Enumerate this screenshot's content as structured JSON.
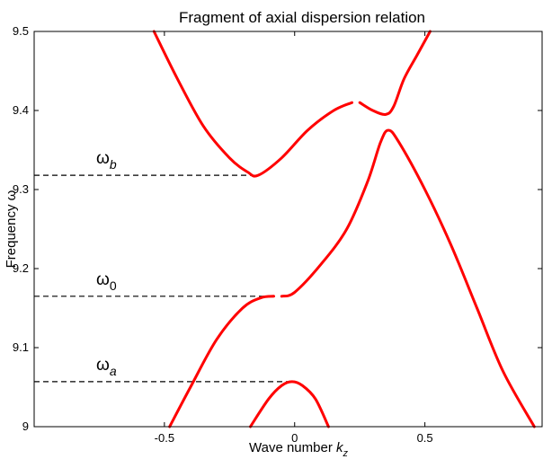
{
  "chart_data": {
    "type": "line",
    "title": "Fragment of axial dispersion relation",
    "xlabel": "Wave number",
    "xlabel_var": "k",
    "xlabel_sub": "z",
    "ylabel": "Frequency",
    "ylabel_var": "ω",
    "xlim": [
      -1.0,
      0.95
    ],
    "ylim": [
      9.0,
      9.5
    ],
    "xticks": [
      -0.5,
      0,
      0.5
    ],
    "xtick_labels": [
      "-0.5",
      "0",
      "0.5"
    ],
    "yticks": [
      9.0,
      9.1,
      9.2,
      9.3,
      9.4,
      9.5
    ],
    "ytick_labels": [
      "9",
      "9.1",
      "9.2",
      "9.3",
      "9.4",
      "9.5"
    ],
    "grid": false,
    "curve_color": "#ff0000",
    "series": [
      {
        "x": [
          -0.54,
          -0.45,
          -0.35,
          -0.25,
          -0.18,
          -0.14,
          -0.05,
          0.05,
          0.15,
          0.22
        ],
        "y": [
          9.5,
          9.44,
          9.38,
          9.34,
          9.322,
          9.318,
          9.34,
          9.375,
          9.4,
          9.41
        ]
      },
      {
        "x": [
          0.25,
          0.3,
          0.35,
          0.38,
          0.42,
          0.47,
          0.52
        ],
        "y": [
          9.41,
          9.4,
          9.395,
          9.405,
          9.44,
          9.47,
          9.5
        ]
      },
      {
        "x": [
          -0.48,
          -0.4,
          -0.3,
          -0.2,
          -0.13,
          -0.08
        ],
        "y": [
          9.0,
          9.05,
          9.11,
          9.15,
          9.163,
          9.165
        ]
      },
      {
        "x": [
          -0.05,
          0.0,
          0.1,
          0.2,
          0.28,
          0.33,
          0.36,
          0.4,
          0.5,
          0.6,
          0.7,
          0.8,
          0.92
        ],
        "y": [
          9.165,
          9.17,
          9.205,
          9.25,
          9.31,
          9.36,
          9.375,
          9.36,
          9.3,
          9.23,
          9.15,
          9.07,
          9.0
        ]
      },
      {
        "x": [
          -0.17,
          -0.1,
          -0.05,
          -0.01,
          0.03,
          0.08,
          0.13
        ],
        "y": [
          9.0,
          9.035,
          9.052,
          9.057,
          9.052,
          9.035,
          9.0
        ]
      }
    ],
    "reference_lines": [
      {
        "label": "ω",
        "sub": "b",
        "y": 9.318,
        "x_end": -0.14
      },
      {
        "label": "ω",
        "sub": "0",
        "y": 9.165,
        "x_end": -0.08
      },
      {
        "label": "ω",
        "sub": "a",
        "y": 9.057,
        "x_end": -0.01
      }
    ]
  }
}
